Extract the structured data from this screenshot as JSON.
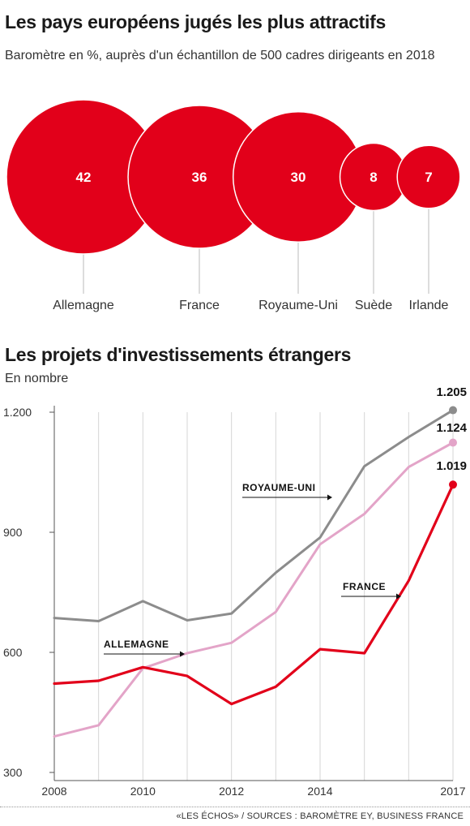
{
  "bubble_chart": {
    "title": "Les pays européens jugés les plus attractifs",
    "subtitle": "Baromètre en %, auprès d'un échantillon de 500 cadres dirigeants en 2018"
  },
  "line_chart": {
    "title": "Les projets d'investissements étrangers",
    "subtitle": "En nombre"
  },
  "source": "«LES ÉCHOS» / SOURCES : BAROMÈTRE EY, BUSINESS FRANCE",
  "colors": {
    "red": "#e2001a",
    "pink": "#e3a4c8",
    "grey": "#8c8c8c"
  },
  "chart_data": [
    {
      "type": "bubble",
      "title": "Les pays européens jugés les plus attractifs",
      "subtitle": "Baromètre en %, auprès d'un échantillon de 500 cadres dirigeants en 2018",
      "categories": [
        "Allemagne",
        "France",
        "Royaume-Uni",
        "Suède",
        "Irlande"
      ],
      "values": [
        42,
        36,
        30,
        8,
        7
      ]
    },
    {
      "type": "line",
      "title": "Les projets d'investissements étrangers",
      "subtitle": "En nombre",
      "x": [
        2008,
        2009,
        2010,
        2011,
        2012,
        2013,
        2014,
        2015,
        2016,
        2017
      ],
      "x_tick_labels": [
        "2008",
        "2010",
        "2012",
        "2014",
        "2017"
      ],
      "y_ticks": [
        300,
        600,
        900,
        1200
      ],
      "y_tick_labels": [
        "300",
        "600",
        "900",
        "1.200"
      ],
      "ylim": [
        300,
        1200
      ],
      "grid": "vertical",
      "series": [
        {
          "name": "ROYAUME-UNI",
          "color": "#8c8c8c",
          "values": [
            686,
            678,
            728,
            680,
            697,
            799,
            887,
            1065,
            1138,
            1205
          ],
          "end_label": "1.205"
        },
        {
          "name": "ALLEMAGNE",
          "color": "#e3a4c8",
          "values": [
            390,
            418,
            560,
            598,
            624,
            701,
            870,
            946,
            1063,
            1124
          ],
          "end_label": "1.124"
        },
        {
          "name": "FRANCE",
          "color": "#e2001a",
          "values": [
            522,
            529,
            563,
            541,
            471,
            514,
            608,
            598,
            779,
            1019
          ],
          "end_label": "1.019"
        }
      ]
    }
  ]
}
